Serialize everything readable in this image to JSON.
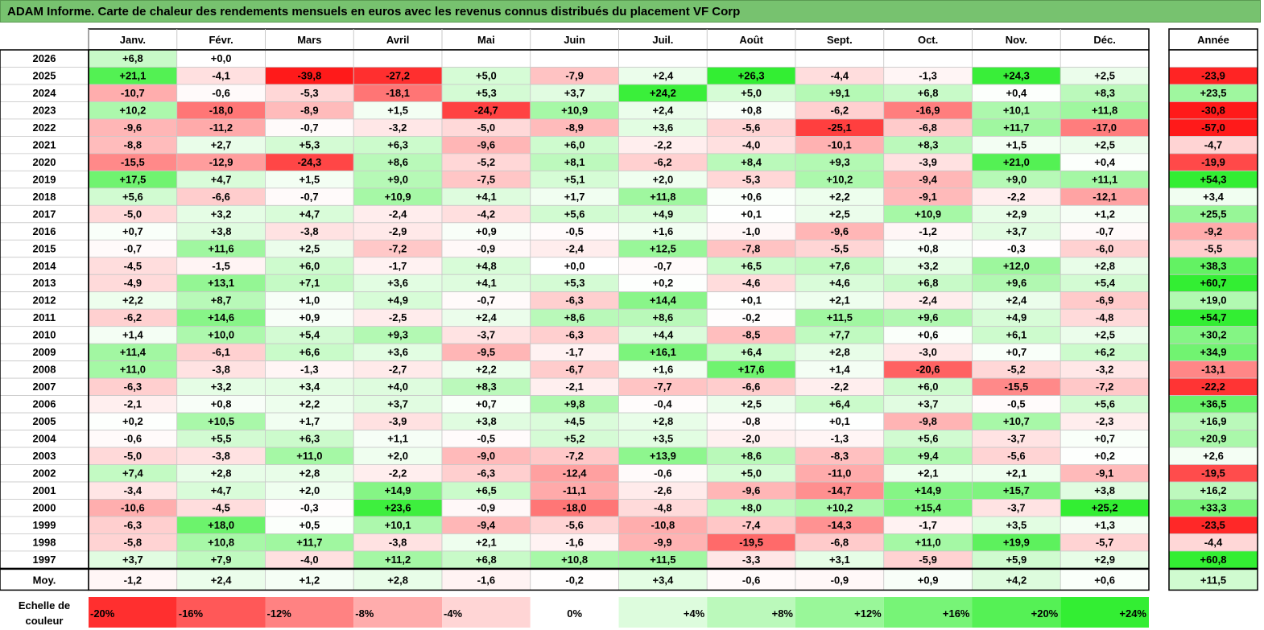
{
  "title": "ADAM Informe. Carte de chaleur des rendements mensuels en euros avec les revenus connus distribués du placement VF Corp",
  "chart_data": {
    "type": "heatmap",
    "months": [
      "Janv.",
      "Févr.",
      "Mars",
      "Avril",
      "Mai",
      "Juin",
      "Juil.",
      "Août",
      "Sept.",
      "Oct.",
      "Nov.",
      "Déc."
    ],
    "year_header": "Année",
    "avg_label": "Moy.",
    "rows": [
      {
        "year": "2026",
        "m": [
          "+6,8",
          "+0,0",
          "",
          "",
          "",
          "",
          "",
          "",
          "",
          "",
          "",
          ""
        ],
        "y": ""
      },
      {
        "year": "2025",
        "m": [
          "+21,1",
          "-4,1",
          "-39,8",
          "-27,2",
          "+5,0",
          "-7,9",
          "+2,4",
          "+26,3",
          "-4,4",
          "-1,3",
          "+24,3",
          "+2,5"
        ],
        "y": "-23,9"
      },
      {
        "year": "2024",
        "m": [
          "-10,7",
          "-0,6",
          "-5,3",
          "-18,1",
          "+5,3",
          "+3,7",
          "+24,2",
          "+5,0",
          "+9,1",
          "+6,8",
          "+0,4",
          "+8,3"
        ],
        "y": "+23,5"
      },
      {
        "year": "2023",
        "m": [
          "+10,2",
          "-18,0",
          "-8,9",
          "+1,5",
          "-24,7",
          "+10,9",
          "+2,4",
          "+0,8",
          "-6,2",
          "-16,9",
          "+10,1",
          "+11,8"
        ],
        "y": "-30,8"
      },
      {
        "year": "2022",
        "m": [
          "-9,6",
          "-11,2",
          "-0,7",
          "-3,2",
          "-5,0",
          "-8,9",
          "+3,6",
          "-5,6",
          "-25,1",
          "-6,8",
          "+11,7",
          "-17,0"
        ],
        "y": "-57,0"
      },
      {
        "year": "2021",
        "m": [
          "-8,8",
          "+2,7",
          "+5,3",
          "+6,3",
          "-9,6",
          "+6,0",
          "-2,2",
          "-4,0",
          "-10,1",
          "+8,3",
          "+1,5",
          "+2,5"
        ],
        "y": "-4,7"
      },
      {
        "year": "2020",
        "m": [
          "-15,5",
          "-12,9",
          "-24,3",
          "+8,6",
          "-5,2",
          "+8,1",
          "-6,2",
          "+8,4",
          "+9,3",
          "-3,9",
          "+21,0",
          "+0,4"
        ],
        "y": "-19,9"
      },
      {
        "year": "2019",
        "m": [
          "+17,5",
          "+4,7",
          "+1,5",
          "+9,0",
          "-7,5",
          "+5,1",
          "+2,0",
          "-5,3",
          "+10,2",
          "-9,4",
          "+9,0",
          "+11,1"
        ],
        "y": "+54,3"
      },
      {
        "year": "2018",
        "m": [
          "+5,6",
          "-6,6",
          "-0,7",
          "+10,9",
          "+4,1",
          "+1,7",
          "+11,8",
          "+0,6",
          "+2,2",
          "-9,1",
          "-2,2",
          "-12,1"
        ],
        "y": "+3,4"
      },
      {
        "year": "2017",
        "m": [
          "-5,0",
          "+3,2",
          "+4,7",
          "-2,4",
          "-4,2",
          "+5,6",
          "+4,9",
          "+0,1",
          "+2,5",
          "+10,9",
          "+2,9",
          "+1,2"
        ],
        "y": "+25,5"
      },
      {
        "year": "2016",
        "m": [
          "+0,7",
          "+3,8",
          "-3,8",
          "-2,9",
          "+0,9",
          "-0,5",
          "+1,6",
          "-1,0",
          "-9,6",
          "-1,2",
          "+3,7",
          "-0,7"
        ],
        "y": "-9,2"
      },
      {
        "year": "2015",
        "m": [
          "-0,7",
          "+11,6",
          "+2,5",
          "-7,2",
          "-0,9",
          "-2,4",
          "+12,5",
          "-7,8",
          "-5,5",
          "+0,8",
          "-0,3",
          "-6,0"
        ],
        "y": "-5,5"
      },
      {
        "year": "2014",
        "m": [
          "-4,5",
          "-1,5",
          "+6,0",
          "-1,7",
          "+4,8",
          "+0,0",
          "-0,7",
          "+6,5",
          "+7,6",
          "+3,2",
          "+12,0",
          "+2,8"
        ],
        "y": "+38,3"
      },
      {
        "year": "2013",
        "m": [
          "-4,9",
          "+13,1",
          "+7,1",
          "+3,6",
          "+4,1",
          "+5,3",
          "+0,2",
          "-4,6",
          "+4,6",
          "+6,8",
          "+9,6",
          "+5,4"
        ],
        "y": "+60,7"
      },
      {
        "year": "2012",
        "m": [
          "+2,2",
          "+8,7",
          "+1,0",
          "+4,9",
          "-0,7",
          "-6,3",
          "+14,4",
          "+0,1",
          "+2,1",
          "-2,4",
          "+2,4",
          "-6,9"
        ],
        "y": "+19,0"
      },
      {
        "year": "2011",
        "m": [
          "-6,2",
          "+14,6",
          "+0,9",
          "-2,5",
          "+2,4",
          "+8,6",
          "+8,6",
          "-0,2",
          "+11,5",
          "+9,6",
          "+4,9",
          "-4,8"
        ],
        "y": "+54,7"
      },
      {
        "year": "2010",
        "m": [
          "+1,4",
          "+10,0",
          "+5,4",
          "+9,3",
          "-3,7",
          "-6,3",
          "+4,4",
          "-8,5",
          "+7,7",
          "+0,6",
          "+6,1",
          "+2,5"
        ],
        "y": "+30,2"
      },
      {
        "year": "2009",
        "m": [
          "+11,4",
          "-6,1",
          "+6,6",
          "+3,6",
          "-9,5",
          "-1,7",
          "+16,1",
          "+6,4",
          "+2,8",
          "-3,0",
          "+0,7",
          "+6,2"
        ],
        "y": "+34,9"
      },
      {
        "year": "2008",
        "m": [
          "+11,0",
          "-3,8",
          "-1,3",
          "-2,7",
          "+2,2",
          "-6,7",
          "+1,6",
          "+17,6",
          "+1,4",
          "-20,6",
          "-5,2",
          "-3,2"
        ],
        "y": "-13,1"
      },
      {
        "year": "2007",
        "m": [
          "-6,3",
          "+3,2",
          "+3,4",
          "+4,0",
          "+8,3",
          "-2,1",
          "-7,7",
          "-6,6",
          "-2,2",
          "+6,0",
          "-15,5",
          "-7,2"
        ],
        "y": "-22,2"
      },
      {
        "year": "2006",
        "m": [
          "-2,1",
          "+0,8",
          "+2,2",
          "+3,7",
          "+0,7",
          "+9,8",
          "-0,4",
          "+2,5",
          "+6,4",
          "+3,7",
          "-0,5",
          "+5,6"
        ],
        "y": "+36,5"
      },
      {
        "year": "2005",
        "m": [
          "+0,2",
          "+10,5",
          "+1,7",
          "-3,9",
          "+3,8",
          "+4,5",
          "+2,8",
          "-0,8",
          "+0,1",
          "-9,8",
          "+10,7",
          "-2,3"
        ],
        "y": "+16,9"
      },
      {
        "year": "2004",
        "m": [
          "-0,6",
          "+5,5",
          "+6,3",
          "+1,1",
          "-0,5",
          "+5,2",
          "+3,5",
          "-2,0",
          "-1,3",
          "+5,6",
          "-3,7",
          "+0,7"
        ],
        "y": "+20,9"
      },
      {
        "year": "2003",
        "m": [
          "-5,0",
          "-3,8",
          "+11,0",
          "+2,0",
          "-9,0",
          "-7,2",
          "+13,9",
          "+8,6",
          "-8,3",
          "+9,4",
          "-5,6",
          "+0,2"
        ],
        "y": "+2,6"
      },
      {
        "year": "2002",
        "m": [
          "+7,4",
          "+2,8",
          "+2,8",
          "-2,2",
          "-6,3",
          "-12,4",
          "-0,6",
          "+5,0",
          "-11,0",
          "+2,1",
          "+2,1",
          "-9,1"
        ],
        "y": "-19,5"
      },
      {
        "year": "2001",
        "m": [
          "-3,4",
          "+4,7",
          "+2,0",
          "+14,9",
          "+6,5",
          "-11,1",
          "-2,6",
          "-9,6",
          "-14,7",
          "+14,9",
          "+15,7",
          "+3,8"
        ],
        "y": "+16,2"
      },
      {
        "year": "2000",
        "m": [
          "-10,6",
          "-4,5",
          "-0,3",
          "+23,6",
          "-0,9",
          "-18,0",
          "-4,8",
          "+8,0",
          "+10,2",
          "+15,4",
          "-3,7",
          "+25,2"
        ],
        "y": "+33,3"
      },
      {
        "year": "1999",
        "m": [
          "-6,3",
          "+18,0",
          "+0,5",
          "+10,1",
          "-9,4",
          "-5,6",
          "-10,8",
          "-7,4",
          "-14,3",
          "-1,7",
          "+3,5",
          "+1,3"
        ],
        "y": "-23,5"
      },
      {
        "year": "1998",
        "m": [
          "-5,8",
          "+10,8",
          "+11,7",
          "-3,8",
          "+2,1",
          "-1,6",
          "-9,9",
          "-19,5",
          "-6,8",
          "+11,0",
          "+19,9",
          "-5,7"
        ],
        "y": "-4,4"
      },
      {
        "year": "1997",
        "m": [
          "+3,7",
          "+7,9",
          "-4,0",
          "+11,2",
          "+6,8",
          "+10,8",
          "+11,5",
          "-3,3",
          "+3,1",
          "-5,9",
          "+5,9",
          "+2,9"
        ],
        "y": "+60,8"
      }
    ],
    "avg": {
      "m": [
        "-1,2",
        "+2,4",
        "+1,2",
        "+2,8",
        "-1,6",
        "-0,2",
        "+3,4",
        "-0,6",
        "-0,9",
        "+0,9",
        "+4,2",
        "+0,6"
      ],
      "y": "+11,5"
    },
    "scale": {
      "label_line1": "Echelle de",
      "label_line2": "couleur",
      "steps": [
        "-20%",
        "-16%",
        "-12%",
        "-8%",
        "-4%",
        "0%",
        "+4%",
        "+8%",
        "+12%",
        "+16%",
        "+20%",
        "+24%"
      ]
    }
  }
}
